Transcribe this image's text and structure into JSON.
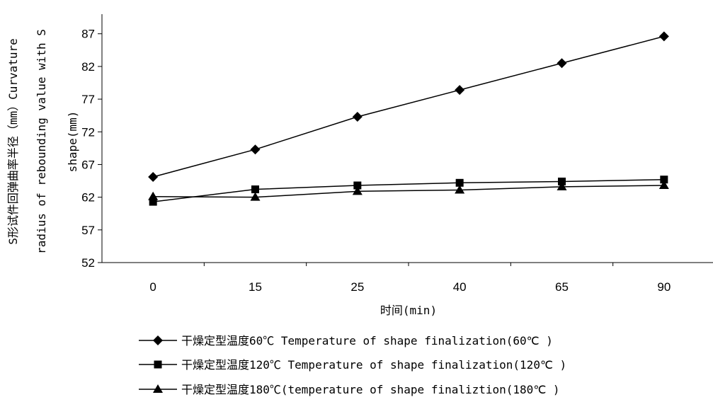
{
  "chart_data": {
    "type": "line",
    "categories": [
      "0",
      "15",
      "25",
      "40",
      "65",
      "90"
    ],
    "ylabel_lines": [
      "S形试件回弹曲率半径（mm）Curvature",
      "radius of rebounding value with S",
      "shape(mm)"
    ],
    "xlabel": "时间(min)",
    "yticks": [
      "52",
      "57",
      "62",
      "67",
      "72",
      "77",
      "82",
      "87"
    ],
    "ylim": [
      52,
      90
    ],
    "grid": false,
    "legend_position": "bottom",
    "series": [
      {
        "name": "干燥定型温度60℃ Temperature of shape finalization(60℃ )",
        "marker": "diamond",
        "values": [
          65.1,
          69.3,
          74.3,
          78.4,
          82.5,
          86.6
        ]
      },
      {
        "name": "干燥定型温度120℃ Temperature of shape finalization(120℃ )",
        "marker": "square",
        "values": [
          61.3,
          63.2,
          63.8,
          64.2,
          64.4,
          64.7
        ]
      },
      {
        "name": "干燥定型温度180℃(temperature of shape finaliztion(180℃ )",
        "marker": "triangle",
        "values": [
          62.1,
          62.0,
          62.9,
          63.1,
          63.6,
          63.8
        ]
      }
    ]
  },
  "colors": {
    "line": "#000000",
    "background": "#ffffff"
  }
}
